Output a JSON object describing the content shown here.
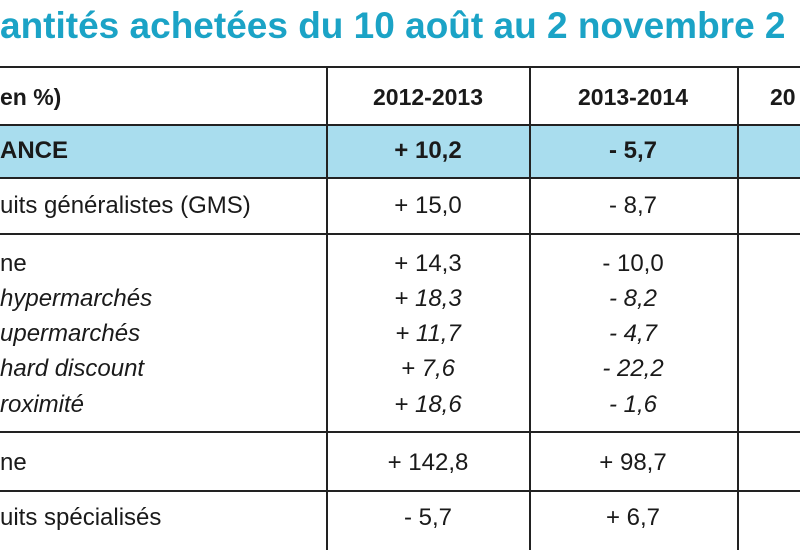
{
  "title": "antités achetées du 10 août au 2 novembre 2",
  "header": {
    "unit_label": " en %)",
    "col1": "2012-2013",
    "col2": "2013-2014",
    "col3": "20"
  },
  "rows": [
    {
      "label": "ANCE",
      "v1": "+ 10,2",
      "v2": "- 5,7"
    },
    {
      "label": "uits généralistes (GMS)",
      "v1": "+ 15,0",
      "v2": "- 8,7"
    },
    {
      "label": "ne",
      "v1": "+ 14,3",
      "v2": "- 10,0"
    },
    {
      "label": "hypermarchés",
      "v1": "+ 18,3",
      "v2": "- 8,2"
    },
    {
      "label": "upermarchés",
      "v1": "+ 11,7",
      "v2": "- 4,7"
    },
    {
      "label": "hard discount",
      "v1": "+ 7,6",
      "v2": "- 22,2"
    },
    {
      "label": "roximité",
      "v1": "+ 18,6",
      "v2": "- 1,6"
    },
    {
      "label": "ne",
      "v1": "+ 142,8",
      "v2": "+ 98,7"
    },
    {
      "label": "uits spécialisés",
      "v1": "- 5,7",
      "v2": "+ 6,7"
    }
  ]
}
